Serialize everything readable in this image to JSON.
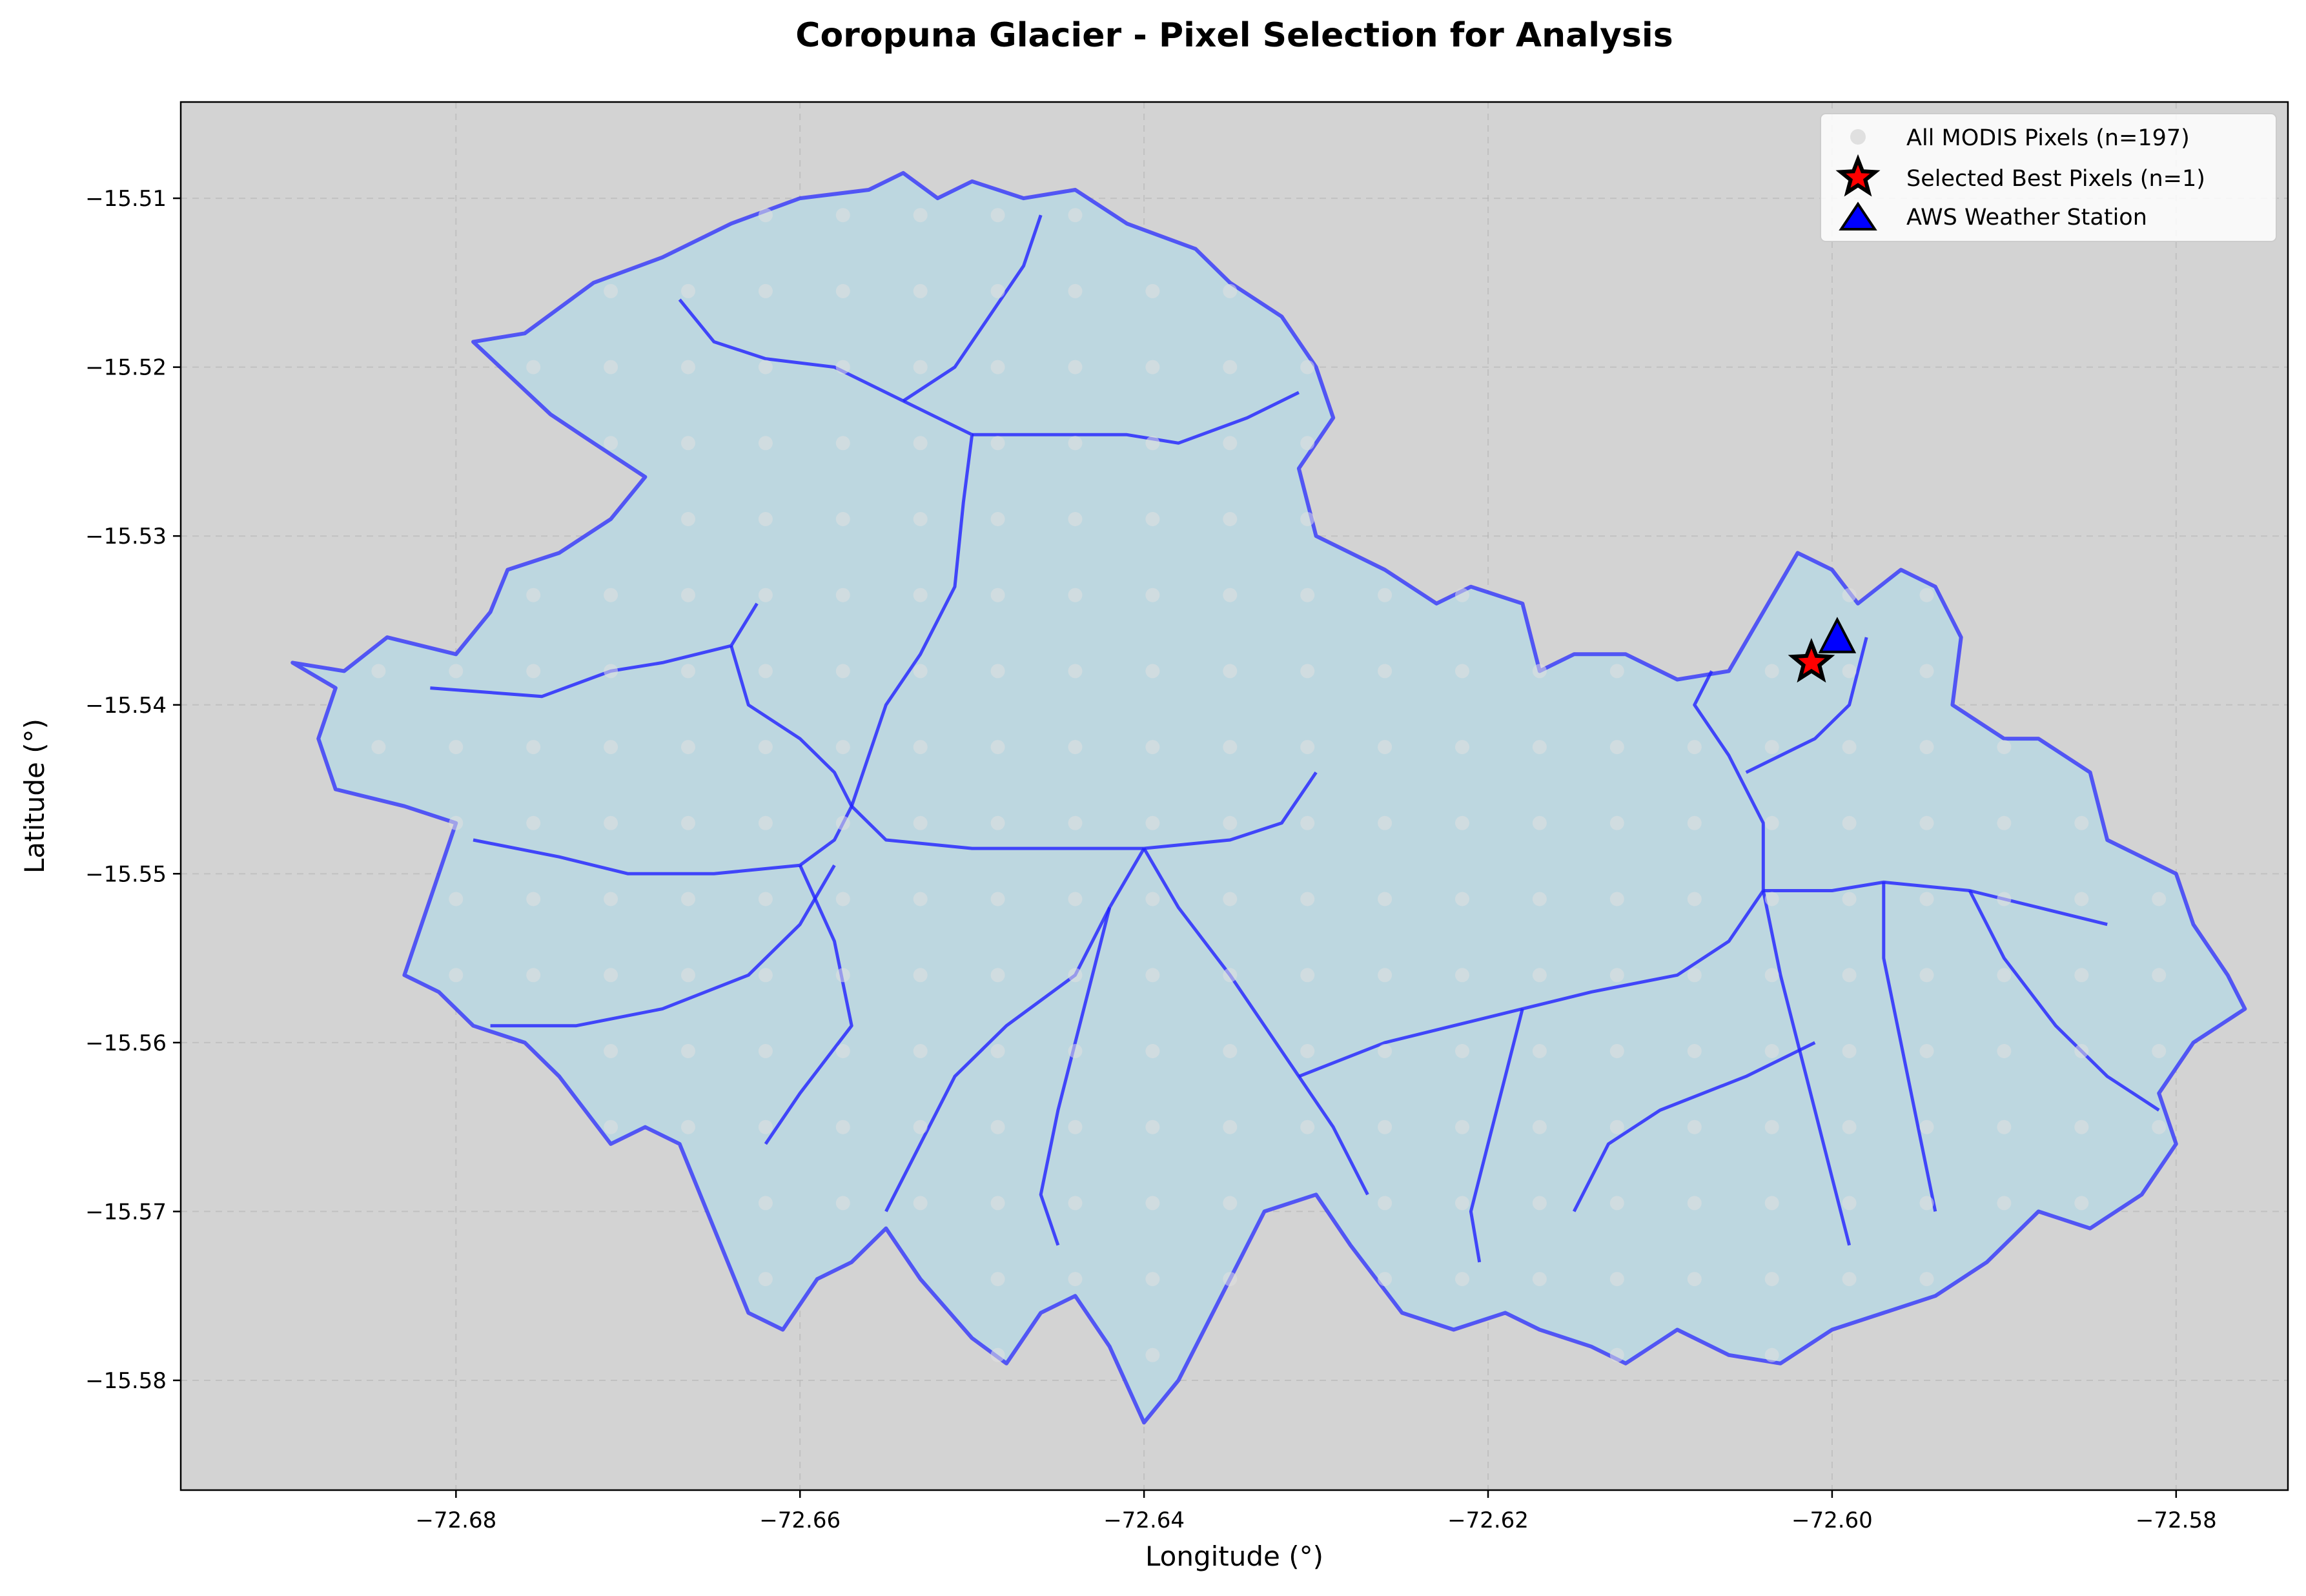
{
  "chart_data": {
    "type": "scatter",
    "title": "Coropuna Glacier - Pixel Selection for Analysis",
    "xlabel": "Longitude (°)",
    "ylabel": "Latitude (°)",
    "xlim": [
      -72.696,
      -72.5735
    ],
    "ylim": [
      -15.5865,
      -15.5043
    ],
    "xticks": [
      -72.68,
      -72.66,
      -72.64,
      -72.62,
      -72.6,
      -72.58
    ],
    "xtick_labels": [
      "−72.68",
      "−72.66",
      "−72.64",
      "−72.62",
      "−72.60",
      "−72.58"
    ],
    "yticks": [
      -15.51,
      -15.52,
      -15.53,
      -15.54,
      -15.55,
      -15.56,
      -15.57,
      -15.58
    ],
    "ytick_labels": [
      "−15.51",
      "−15.52",
      "−15.53",
      "−15.54",
      "−15.55",
      "−15.56",
      "−15.57",
      "−15.58"
    ],
    "grid": true,
    "background": "#d3d3d3",
    "legend_position": "top-right",
    "glacier": {
      "fill": "#bdd7e0",
      "outline_color": "#2020ff",
      "outline": [
        [
          -72.6895,
          -15.5375
        ],
        [
          -72.6865,
          -15.538
        ],
        [
          -72.684,
          -15.536
        ],
        [
          -72.68,
          -15.537
        ],
        [
          -72.678,
          -15.5345
        ],
        [
          -72.677,
          -15.532
        ],
        [
          -72.674,
          -15.531
        ],
        [
          -72.671,
          -15.529
        ],
        [
          -72.669,
          -15.5265
        ],
        [
          -72.672,
          -15.5245
        ],
        [
          -72.6745,
          -15.5228
        ],
        [
          -72.679,
          -15.5185
        ],
        [
          -72.676,
          -15.518
        ],
        [
          -72.672,
          -15.515
        ],
        [
          -72.668,
          -15.5135
        ],
        [
          -72.664,
          -15.5115
        ],
        [
          -72.66,
          -15.51
        ],
        [
          -72.656,
          -15.5095
        ],
        [
          -72.654,
          -15.5085
        ],
        [
          -72.652,
          -15.51
        ],
        [
          -72.65,
          -15.509
        ],
        [
          -72.647,
          -15.51
        ],
        [
          -72.644,
          -15.5095
        ],
        [
          -72.641,
          -15.5115
        ],
        [
          -72.637,
          -15.513
        ],
        [
          -72.635,
          -15.515
        ],
        [
          -72.632,
          -15.517
        ],
        [
          -72.63,
          -15.52
        ],
        [
          -72.629,
          -15.523
        ],
        [
          -72.631,
          -15.526
        ],
        [
          -72.63,
          -15.53
        ],
        [
          -72.626,
          -15.532
        ],
        [
          -72.623,
          -15.534
        ],
        [
          -72.621,
          -15.533
        ],
        [
          -72.618,
          -15.534
        ],
        [
          -72.617,
          -15.538
        ],
        [
          -72.615,
          -15.537
        ],
        [
          -72.612,
          -15.537
        ],
        [
          -72.609,
          -15.5385
        ],
        [
          -72.606,
          -15.538
        ],
        [
          -72.604,
          -15.5345
        ],
        [
          -72.602,
          -15.531
        ],
        [
          -72.6,
          -15.532
        ],
        [
          -72.5985,
          -15.534
        ],
        [
          -72.596,
          -15.532
        ],
        [
          -72.594,
          -15.533
        ],
        [
          -72.5925,
          -15.536
        ],
        [
          -72.593,
          -15.54
        ],
        [
          -72.59,
          -15.542
        ],
        [
          -72.588,
          -15.542
        ],
        [
          -72.585,
          -15.544
        ],
        [
          -72.584,
          -15.548
        ],
        [
          -72.58,
          -15.55
        ],
        [
          -72.579,
          -15.553
        ],
        [
          -72.577,
          -15.556
        ],
        [
          -72.576,
          -15.558
        ],
        [
          -72.579,
          -15.56
        ],
        [
          -72.581,
          -15.563
        ],
        [
          -72.58,
          -15.566
        ],
        [
          -72.582,
          -15.569
        ],
        [
          -72.585,
          -15.571
        ],
        [
          -72.588,
          -15.57
        ],
        [
          -72.591,
          -15.573
        ],
        [
          -72.594,
          -15.575
        ],
        [
          -72.597,
          -15.576
        ],
        [
          -72.6,
          -15.577
        ],
        [
          -72.603,
          -15.579
        ],
        [
          -72.606,
          -15.5785
        ],
        [
          -72.609,
          -15.577
        ],
        [
          -72.612,
          -15.579
        ],
        [
          -72.614,
          -15.578
        ],
        [
          -72.617,
          -15.577
        ],
        [
          -72.619,
          -15.576
        ],
        [
          -72.622,
          -15.577
        ],
        [
          -72.625,
          -15.576
        ],
        [
          -72.628,
          -15.572
        ],
        [
          -72.63,
          -15.569
        ],
        [
          -72.633,
          -15.57
        ],
        [
          -72.636,
          -15.576
        ],
        [
          -72.638,
          -15.58
        ],
        [
          -72.64,
          -15.5825
        ],
        [
          -72.642,
          -15.578
        ],
        [
          -72.644,
          -15.575
        ],
        [
          -72.646,
          -15.576
        ],
        [
          -72.648,
          -15.579
        ],
        [
          -72.65,
          -15.5775
        ],
        [
          -72.653,
          -15.574
        ],
        [
          -72.655,
          -15.571
        ],
        [
          -72.657,
          -15.573
        ],
        [
          -72.659,
          -15.574
        ],
        [
          -72.661,
          -15.577
        ],
        [
          -72.663,
          -15.576
        ],
        [
          -72.665,
          -15.571
        ],
        [
          -72.667,
          -15.566
        ],
        [
          -72.669,
          -15.565
        ],
        [
          -72.671,
          -15.566
        ],
        [
          -72.674,
          -15.562
        ],
        [
          -72.676,
          -15.56
        ],
        [
          -72.679,
          -15.559
        ],
        [
          -72.681,
          -15.557
        ],
        [
          -72.683,
          -15.556
        ],
        [
          -72.682,
          -15.553
        ],
        [
          -72.681,
          -15.55
        ],
        [
          -72.68,
          -15.547
        ],
        [
          -72.683,
          -15.546
        ],
        [
          -72.687,
          -15.545
        ],
        [
          -72.688,
          -15.542
        ],
        [
          -72.687,
          -15.539
        ]
      ],
      "inner_lines": [
        [
          [
            -72.6815,
            -15.539
          ],
          [
            -72.675,
            -15.5395
          ],
          [
            -72.671,
            -15.538
          ],
          [
            -72.668,
            -15.5375
          ],
          [
            -72.664,
            -15.5365
          ],
          [
            -72.6625,
            -15.534
          ]
        ],
        [
          [
            -72.664,
            -15.5365
          ],
          [
            -72.663,
            -15.54
          ],
          [
            -72.66,
            -15.542
          ],
          [
            -72.658,
            -15.544
          ],
          [
            -72.657,
            -15.546
          ]
        ],
        [
          [
            -72.657,
            -15.546
          ],
          [
            -72.656,
            -15.543
          ],
          [
            -72.655,
            -15.54
          ],
          [
            -72.653,
            -15.537
          ],
          [
            -72.651,
            -15.533
          ],
          [
            -72.6505,
            -15.528
          ],
          [
            -72.65,
            -15.524
          ],
          [
            -72.654,
            -15.522
          ],
          [
            -72.658,
            -15.52
          ],
          [
            -72.662,
            -15.5195
          ],
          [
            -72.665,
            -15.5185
          ],
          [
            -72.667,
            -15.516
          ]
        ],
        [
          [
            -72.65,
            -15.524
          ],
          [
            -72.646,
            -15.524
          ],
          [
            -72.641,
            -15.524
          ],
          [
            -72.638,
            -15.5245
          ],
          [
            -72.634,
            -15.523
          ],
          [
            -72.631,
            -15.5215
          ]
        ],
        [
          [
            -72.654,
            -15.522
          ],
          [
            -72.651,
            -15.52
          ],
          [
            -72.649,
            -15.517
          ],
          [
            -72.647,
            -15.514
          ],
          [
            -72.646,
            -15.511
          ]
        ],
        [
          [
            -72.657,
            -15.546
          ],
          [
            -72.655,
            -15.548
          ],
          [
            -72.65,
            -15.5485
          ],
          [
            -72.645,
            -15.5485
          ],
          [
            -72.64,
            -15.5485
          ],
          [
            -72.635,
            -15.548
          ],
          [
            -72.632,
            -15.547
          ],
          [
            -72.63,
            -15.544
          ]
        ],
        [
          [
            -72.657,
            -15.546
          ],
          [
            -72.658,
            -15.548
          ],
          [
            -72.66,
            -15.5495
          ],
          [
            -72.665,
            -15.55
          ],
          [
            -72.67,
            -15.55
          ],
          [
            -72.674,
            -15.549
          ],
          [
            -72.679,
            -15.548
          ]
        ],
        [
          [
            -72.658,
            -15.5495
          ],
          [
            -72.66,
            -15.553
          ],
          [
            -72.663,
            -15.556
          ],
          [
            -72.668,
            -15.558
          ],
          [
            -72.673,
            -15.559
          ],
          [
            -72.678,
            -15.559
          ]
        ],
        [
          [
            -72.66,
            -15.5495
          ],
          [
            -72.658,
            -15.554
          ],
          [
            -72.657,
            -15.559
          ],
          [
            -72.66,
            -15.563
          ],
          [
            -72.662,
            -15.566
          ]
        ],
        [
          [
            -72.64,
            -15.5485
          ],
          [
            -72.638,
            -15.552
          ],
          [
            -72.635,
            -15.556
          ],
          [
            -72.633,
            -15.559
          ],
          [
            -72.631,
            -15.562
          ],
          [
            -72.629,
            -15.565
          ],
          [
            -72.627,
            -15.569
          ]
        ],
        [
          [
            -72.64,
            -15.5485
          ],
          [
            -72.642,
            -15.552
          ],
          [
            -72.643,
            -15.556
          ],
          [
            -72.644,
            -15.56
          ],
          [
            -72.645,
            -15.564
          ],
          [
            -72.646,
            -15.569
          ],
          [
            -72.645,
            -15.572
          ]
        ],
        [
          [
            -72.642,
            -15.552
          ],
          [
            -72.644,
            -15.556
          ],
          [
            -72.648,
            -15.559
          ],
          [
            -72.651,
            -15.562
          ],
          [
            -72.653,
            -15.566
          ],
          [
            -72.655,
            -15.57
          ]
        ],
        [
          [
            -72.631,
            -15.562
          ],
          [
            -72.626,
            -15.56
          ],
          [
            -72.622,
            -15.559
          ],
          [
            -72.618,
            -15.558
          ],
          [
            -72.614,
            -15.557
          ],
          [
            -72.609,
            -15.556
          ],
          [
            -72.606,
            -15.554
          ],
          [
            -72.604,
            -15.551
          ]
        ],
        [
          [
            -72.618,
            -15.558
          ],
          [
            -72.619,
            -15.562
          ],
          [
            -72.62,
            -15.566
          ],
          [
            -72.621,
            -15.57
          ],
          [
            -72.6205,
            -15.573
          ]
        ],
        [
          [
            -72.604,
            -15.551
          ],
          [
            -72.604,
            -15.547
          ],
          [
            -72.606,
            -15.543
          ],
          [
            -72.608,
            -15.54
          ],
          [
            -72.607,
            -15.538
          ]
        ],
        [
          [
            -72.604,
            -15.551
          ],
          [
            -72.6,
            -15.551
          ],
          [
            -72.597,
            -15.5505
          ],
          [
            -72.592,
            -15.551
          ],
          [
            -72.588,
            -15.552
          ],
          [
            -72.584,
            -15.553
          ]
        ],
        [
          [
            -72.604,
            -15.551
          ],
          [
            -72.603,
            -15.556
          ],
          [
            -72.602,
            -15.56
          ],
          [
            -72.601,
            -15.564
          ],
          [
            -72.6,
            -15.568
          ],
          [
            -72.599,
            -15.572
          ]
        ],
        [
          [
            -72.597,
            -15.5505
          ],
          [
            -72.597,
            -15.555
          ],
          [
            -72.596,
            -15.56
          ],
          [
            -72.595,
            -15.565
          ],
          [
            -72.594,
            -15.57
          ]
        ],
        [
          [
            -72.592,
            -15.551
          ],
          [
            -72.59,
            -15.555
          ],
          [
            -72.587,
            -15.559
          ],
          [
            -72.584,
            -15.562
          ],
          [
            -72.581,
            -15.564
          ]
        ],
        [
          [
            -72.605,
            -15.544
          ],
          [
            -72.601,
            -15.542
          ],
          [
            -72.599,
            -15.54
          ],
          [
            -72.598,
            -15.536
          ]
        ],
        [
          [
            -72.601,
            -15.56
          ],
          [
            -72.605,
            -15.562
          ],
          [
            -72.61,
            -15.564
          ],
          [
            -72.613,
            -15.566
          ],
          [
            -72.615,
            -15.57
          ]
        ]
      ]
    },
    "series": [
      {
        "name": "All MODIS Pixels (n=197)",
        "marker": "circle",
        "color": "#e0e0e0",
        "note": "grid of MODIS pixel centers",
        "x_start": -72.689,
        "x_step": 0.0045,
        "y_start": -15.511,
        "y_step": -0.0045
      },
      {
        "name": "Selected Best Pixels (n=1)",
        "marker": "star",
        "color": "#ff0000",
        "edge": "#000000",
        "points": [
          [
            -72.6012,
            -15.5375
          ]
        ]
      },
      {
        "name": "AWS Weather Station",
        "marker": "triangle",
        "color": "#0000ff",
        "edge": "#000000",
        "points": [
          [
            -72.5997,
            -15.5361
          ]
        ]
      }
    ]
  }
}
